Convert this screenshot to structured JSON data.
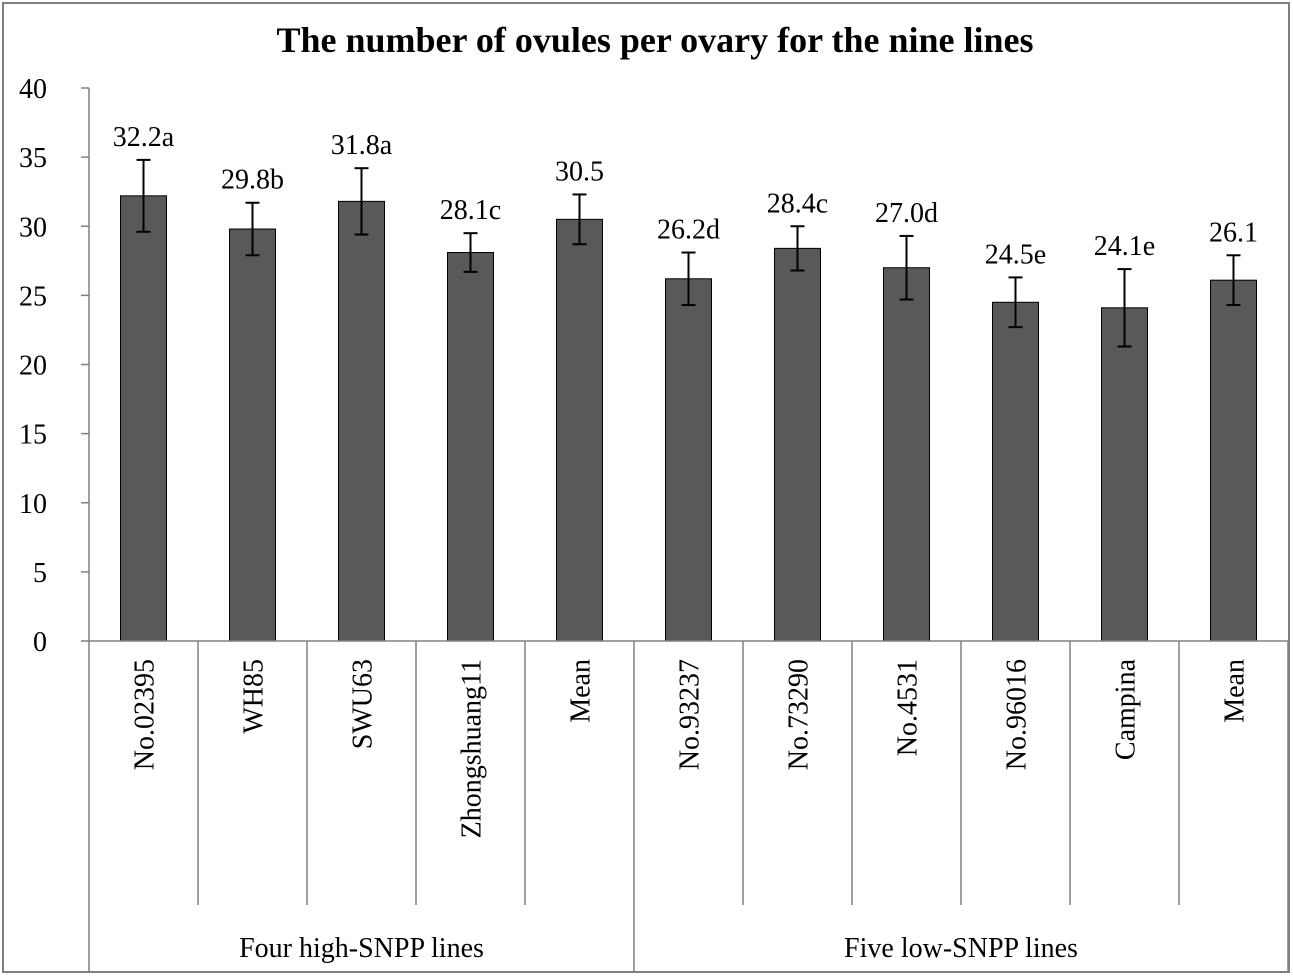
{
  "chart_data": {
    "type": "bar",
    "title": "The number  of ovules per ovary for the nine lines",
    "xlabel": "",
    "ylabel": "",
    "ylim": [
      0,
      40
    ],
    "yticks": [
      "0",
      "5",
      "10",
      "15",
      "20",
      "25",
      "30",
      "35",
      "40"
    ],
    "grid": false,
    "legend": "none",
    "bar_color": "#595959",
    "categories": [
      "No.02395",
      "WH85",
      "SWU63",
      "Zhongshuang11",
      "Mean",
      "No.93237",
      "No.73290",
      "No.4531",
      "No.96016",
      "Campina",
      "Mean"
    ],
    "values": [
      32.2,
      29.8,
      31.8,
      28.1,
      30.5,
      26.2,
      28.4,
      27.0,
      24.5,
      24.1,
      26.1
    ],
    "errors": [
      2.6,
      1.9,
      2.4,
      1.4,
      1.8,
      1.9,
      1.6,
      2.3,
      1.8,
      2.8,
      1.8
    ],
    "data_labels": [
      "32.2a",
      "29.8b",
      "31.8a",
      "28.1c",
      "30.5",
      "26.2d",
      "28.4c",
      "27.0d",
      "24.5e",
      "24.1e",
      "26.1"
    ],
    "groups": [
      {
        "label": "Four high-SNPP lines",
        "count": 5
      },
      {
        "label": "Five low-SNPP lines",
        "count": 6
      }
    ]
  }
}
